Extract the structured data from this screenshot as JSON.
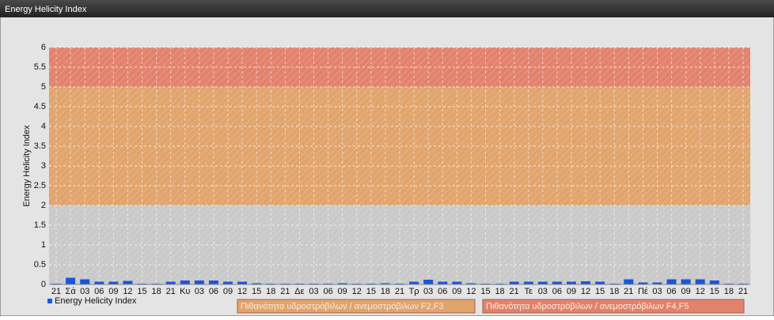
{
  "chart_data": {
    "type": "bar",
    "title": "Energy Helicity Index",
    "y_label": "Energy Helicity Index",
    "categories": [
      "21",
      "Σά",
      "03",
      "06",
      "09",
      "12",
      "15",
      "18",
      "21",
      "Κυ",
      "03",
      "06",
      "09",
      "12",
      "15",
      "18",
      "21",
      "Δε",
      "03",
      "06",
      "09",
      "12",
      "15",
      "18",
      "21",
      "Τρ",
      "03",
      "06",
      "09",
      "12",
      "15",
      "18",
      "21",
      "Τε",
      "03",
      "06",
      "09",
      "12",
      "15",
      "18",
      "21",
      "Πέ",
      "03",
      "06",
      "09",
      "12",
      "15",
      "18",
      "21"
    ],
    "series": [
      {
        "name": "Energy Helicity Index",
        "color": "#1a56db",
        "values": [
          0.02,
          0.17,
          0.13,
          0.07,
          0.07,
          0.09,
          0.02,
          0.02,
          0.07,
          0.1,
          0.1,
          0.1,
          0.07,
          0.07,
          0.03,
          0.02,
          0.02,
          0.02,
          0.02,
          0.02,
          0.03,
          0.02,
          0.02,
          0.03,
          0.02,
          0.07,
          0.12,
          0.07,
          0.07,
          0.03,
          0.02,
          0.02,
          0.07,
          0.07,
          0.07,
          0.07,
          0.07,
          0.08,
          0.07,
          0.02,
          0.13,
          0.05,
          0.05,
          0.13,
          0.13,
          0.13,
          0.1,
          0.02,
          0.02
        ]
      }
    ],
    "bands": [
      {
        "from": 0,
        "to": 2,
        "color": "#c9c9c9"
      },
      {
        "from": 2,
        "to": 5,
        "color": "#e1a46c",
        "label": "Πιθανότητα υδροστρόβιλων / ανεμοστρόβιλων F2,F3"
      },
      {
        "from": 5,
        "to": 6,
        "color": "#e2826c",
        "label": "Πιθανότητα υδροστρόβιλων / ανεμοστρόβιλων F4,F5"
      }
    ],
    "ylim": [
      0,
      6
    ],
    "yticks": [
      0,
      0.5,
      1,
      1.5,
      2,
      2.5,
      3,
      3.5,
      4,
      4.5,
      5,
      5.5,
      6
    ],
    "grid": true
  }
}
